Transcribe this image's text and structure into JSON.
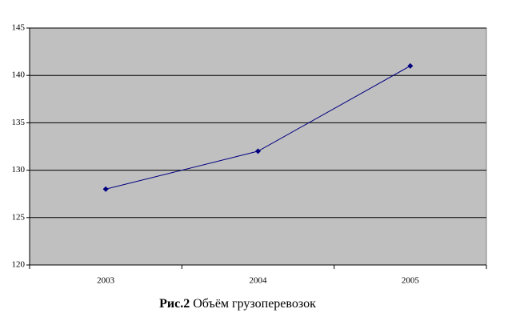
{
  "chart_data": {
    "type": "line",
    "figure_label": "Рис.2",
    "title": "Объём грузоперевозок",
    "categories": [
      "2003",
      "2004",
      "2005"
    ],
    "series": [
      {
        "color": "#000080",
        "values": [
          128,
          132,
          141
        ]
      }
    ],
    "ylim": [
      120,
      145
    ],
    "yticks": [
      120,
      125,
      130,
      135,
      140,
      145
    ],
    "grid": true,
    "plot_background": "#c0c0c0"
  }
}
